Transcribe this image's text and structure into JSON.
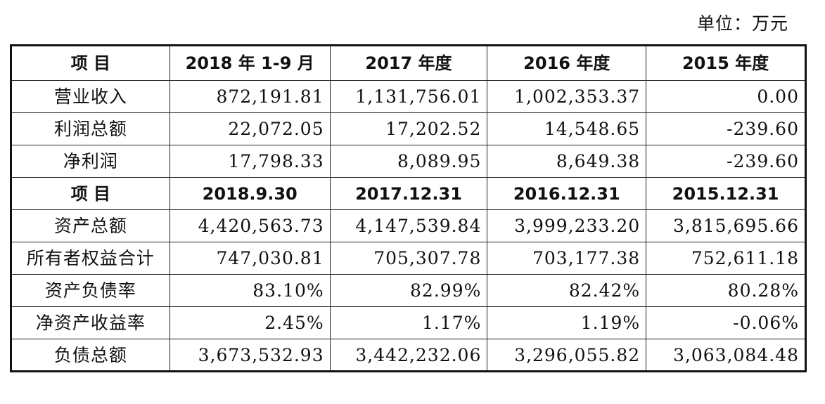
{
  "unit_label": "单位：万元",
  "income_header": [
    "项  目",
    "2018 年 1-9 月",
    "2017 年度",
    "2016 年度",
    "2015 年度"
  ],
  "income_rows": [
    {
      "label": "营业收入",
      "values": [
        "872,191.81",
        "1,131,756.01",
        "1,002,353.37",
        "0.00"
      ]
    },
    {
      "label": "利润总额",
      "values": [
        "22,072.05",
        "17,202.52",
        "14,548.65",
        "-239.60"
      ]
    },
    {
      "label": "净利润",
      "values": [
        "17,798.33",
        "8,089.95",
        "8,649.38",
        "-239.60"
      ]
    }
  ],
  "balance_header": [
    "项  目",
    "2018.9.30",
    "2017.12.31",
    "2016.12.31",
    "2015.12.31"
  ],
  "balance_rows": [
    {
      "label": "资产总额",
      "values": [
        "4,420,563.73",
        "4,147,539.84",
        "3,999,233.20",
        "3,815,695.66"
      ]
    },
    {
      "label": "所有者权益合计",
      "values": [
        "747,030.81",
        "705,307.78",
        "703,177.38",
        "752,611.18"
      ]
    },
    {
      "label": "资产负债率",
      "values": [
        "83.10%",
        "82.99%",
        "82.42%",
        "80.28%"
      ]
    },
    {
      "label": "净资产收益率",
      "values": [
        "2.45%",
        "1.17%",
        "1.19%",
        "-0.06%"
      ]
    },
    {
      "label": "负债总额",
      "values": [
        "3,673,532.93",
        "3,442,232.06",
        "3,296,055.82",
        "3,063,084.48"
      ]
    }
  ]
}
